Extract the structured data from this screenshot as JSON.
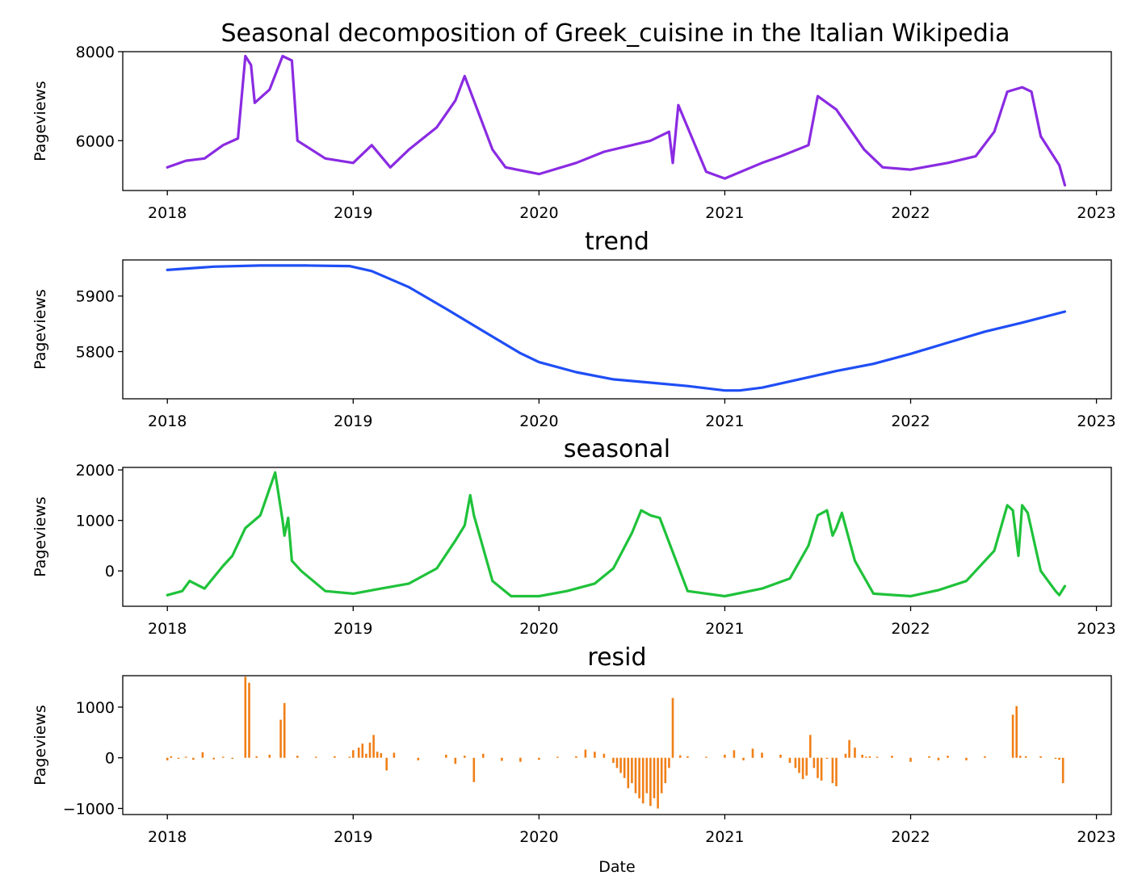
{
  "chart_data": [
    {
      "type": "line",
      "title": "Seasonal decomposition of Greek_cuisine in the Italian Wikipedia",
      "ylabel": "Pageviews",
      "xlabel": "",
      "color": "#8a2be2",
      "xlim": [
        2017.76,
        2023.08
      ],
      "ylim": [
        4880,
        8000
      ],
      "xticks": [
        "2018",
        "2019",
        "2020",
        "2021",
        "2022",
        "2023"
      ],
      "yticks": [
        "6000",
        "8000"
      ],
      "series": [
        {
          "x": [
            2018.0,
            2018.1,
            2018.2,
            2018.3,
            2018.38,
            2018.42,
            2018.45,
            2018.47,
            2018.55,
            2018.62,
            2018.67,
            2018.7,
            2018.85,
            2019.0,
            2019.1,
            2019.2,
            2019.3,
            2019.45,
            2019.55,
            2019.6,
            2019.75,
            2019.82,
            2020.0,
            2020.2,
            2020.35,
            2020.5,
            2020.6,
            2020.7,
            2020.72,
            2020.75,
            2020.9,
            2021.0,
            2021.2,
            2021.3,
            2021.45,
            2021.5,
            2021.6,
            2021.75,
            2021.85,
            2022.0,
            2022.2,
            2022.35,
            2022.45,
            2022.52,
            2022.6,
            2022.65,
            2022.7,
            2022.8,
            2022.83
          ],
          "y": [
            5400,
            5550,
            5600,
            5900,
            6050,
            7900,
            7700,
            6850,
            7150,
            7900,
            7800,
            6000,
            5600,
            5500,
            5900,
            5400,
            5800,
            6300,
            6900,
            7450,
            5800,
            5400,
            5250,
            5500,
            5750,
            5900,
            6000,
            6200,
            5500,
            6800,
            5300,
            5150,
            5500,
            5650,
            5900,
            7000,
            6700,
            5800,
            5400,
            5350,
            5500,
            5650,
            6200,
            7100,
            7200,
            7100,
            6100,
            5450,
            5000
          ]
        }
      ]
    },
    {
      "type": "line",
      "title": "trend",
      "ylabel": "Pageviews",
      "xlabel": "",
      "color": "#1f4ef5",
      "xlim": [
        2017.76,
        2023.08
      ],
      "ylim": [
        5715,
        5965
      ],
      "xticks": [
        "2018",
        "2019",
        "2020",
        "2021",
        "2022",
        "2023"
      ],
      "yticks": [
        "5800",
        "5900"
      ],
      "series": [
        {
          "x": [
            2018.0,
            2018.25,
            2018.5,
            2018.75,
            2018.98,
            2019.1,
            2019.3,
            2019.5,
            2019.7,
            2019.9,
            2020.0,
            2020.2,
            2020.4,
            2020.6,
            2020.8,
            2021.0,
            2021.08,
            2021.2,
            2021.4,
            2021.6,
            2021.8,
            2022.0,
            2022.2,
            2022.4,
            2022.6,
            2022.83
          ],
          "y": [
            5947,
            5953,
            5955,
            5955,
            5954,
            5945,
            5916,
            5877,
            5837,
            5797,
            5781,
            5763,
            5750,
            5744,
            5738,
            5730,
            5730,
            5735,
            5750,
            5765,
            5778,
            5796,
            5816,
            5836,
            5852,
            5872
          ]
        }
      ]
    },
    {
      "type": "line",
      "title": "seasonal",
      "ylabel": "Pageviews",
      "xlabel": "",
      "color": "#1fc23a",
      "xlim": [
        2017.76,
        2023.08
      ],
      "ylim": [
        -700,
        2050
      ],
      "xticks": [
        "2018",
        "2019",
        "2020",
        "2021",
        "2022",
        "2023"
      ],
      "yticks": [
        "0",
        "1000",
        "2000"
      ],
      "series": [
        {
          "x": [
            2018.0,
            2018.08,
            2018.12,
            2018.2,
            2018.3,
            2018.35,
            2018.42,
            2018.5,
            2018.58,
            2018.62,
            2018.63,
            2018.65,
            2018.67,
            2018.72,
            2018.85,
            2019.0,
            2019.15,
            2019.3,
            2019.45,
            2019.55,
            2019.6,
            2019.63,
            2019.65,
            2019.75,
            2019.85,
            2020.0,
            2020.15,
            2020.3,
            2020.4,
            2020.5,
            2020.55,
            2020.6,
            2020.65,
            2020.8,
            2021.0,
            2021.2,
            2021.35,
            2021.45,
            2021.5,
            2021.55,
            2021.58,
            2021.6,
            2021.63,
            2021.7,
            2021.8,
            2022.0,
            2022.15,
            2022.3,
            2022.45,
            2022.52,
            2022.55,
            2022.58,
            2022.6,
            2022.63,
            2022.7,
            2022.78,
            2022.8,
            2022.83
          ],
          "y": [
            -480,
            -400,
            -200,
            -350,
            100,
            300,
            850,
            1100,
            1950,
            1000,
            700,
            1050,
            200,
            0,
            -400,
            -450,
            -350,
            -250,
            50,
            600,
            900,
            1500,
            1100,
            -200,
            -500,
            -500,
            -400,
            -250,
            50,
            750,
            1200,
            1100,
            1050,
            -400,
            -500,
            -350,
            -150,
            500,
            1100,
            1200,
            700,
            850,
            1150,
            200,
            -450,
            -500,
            -380,
            -200,
            400,
            1300,
            1200,
            300,
            1300,
            1150,
            0,
            -400,
            -480,
            -300
          ]
        }
      ]
    },
    {
      "type": "bar",
      "title": "resid",
      "ylabel": "Pageviews",
      "xlabel": "Date",
      "color": "#f07f17",
      "xlim": [
        2017.76,
        2023.08
      ],
      "ylim": [
        -1120,
        1620
      ],
      "xticks": [
        "2018",
        "2019",
        "2020",
        "2021",
        "2022",
        "2023"
      ],
      "yticks": [
        "−1000",
        "0",
        "1000"
      ],
      "series": [
        {
          "x": [
            2018.0,
            2018.02,
            2018.06,
            2018.1,
            2018.14,
            2018.19,
            2018.25,
            2018.3,
            2018.35,
            2018.42,
            2018.44,
            2018.48,
            2018.55,
            2018.61,
            2018.63,
            2018.7,
            2018.8,
            2018.9,
            2018.98,
            2019.0,
            2019.03,
            2019.05,
            2019.07,
            2019.09,
            2019.11,
            2019.13,
            2019.15,
            2019.18,
            2019.22,
            2019.35,
            2019.5,
            2019.55,
            2019.6,
            2019.65,
            2019.7,
            2019.8,
            2019.9,
            2020.0,
            2020.1,
            2020.2,
            2020.25,
            2020.3,
            2020.35,
            2020.4,
            2020.42,
            2020.44,
            2020.46,
            2020.48,
            2020.5,
            2020.52,
            2020.54,
            2020.56,
            2020.58,
            2020.6,
            2020.62,
            2020.64,
            2020.66,
            2020.68,
            2020.7,
            2020.72,
            2020.76,
            2020.8,
            2020.9,
            2021.0,
            2021.05,
            2021.1,
            2021.15,
            2021.2,
            2021.3,
            2021.35,
            2021.38,
            2021.4,
            2021.42,
            2021.44,
            2021.46,
            2021.48,
            2021.5,
            2021.52,
            2021.55,
            2021.58,
            2021.6,
            2021.65,
            2021.67,
            2021.7,
            2021.74,
            2021.76,
            2021.78,
            2021.82,
            2021.9,
            2022.0,
            2022.1,
            2022.15,
            2022.2,
            2022.3,
            2022.4,
            2022.55,
            2022.57,
            2022.59,
            2022.62,
            2022.7,
            2022.78,
            2022.8,
            2022.82
          ],
          "y": [
            -50,
            30,
            -20,
            20,
            -40,
            110,
            -30,
            20,
            -20,
            1600,
            1480,
            30,
            60,
            750,
            1080,
            40,
            20,
            30,
            20,
            150,
            200,
            280,
            80,
            300,
            450,
            120,
            90,
            -250,
            100,
            -50,
            60,
            -120,
            40,
            -480,
            80,
            -60,
            -80,
            -40,
            20,
            30,
            160,
            120,
            80,
            -100,
            -200,
            -300,
            -400,
            -600,
            -500,
            -700,
            -800,
            -900,
            -700,
            -950,
            -800,
            -1000,
            -700,
            -500,
            -200,
            1180,
            50,
            30,
            20,
            60,
            150,
            -50,
            180,
            100,
            60,
            -100,
            -200,
            -300,
            -420,
            -350,
            450,
            -200,
            -400,
            -450,
            -20,
            -500,
            -560,
            80,
            350,
            200,
            60,
            20,
            30,
            20,
            40,
            -80,
            30,
            -50,
            40,
            -50,
            30,
            850,
            1020,
            40,
            30,
            30,
            -20,
            -40,
            -500
          ]
        }
      ]
    }
  ]
}
